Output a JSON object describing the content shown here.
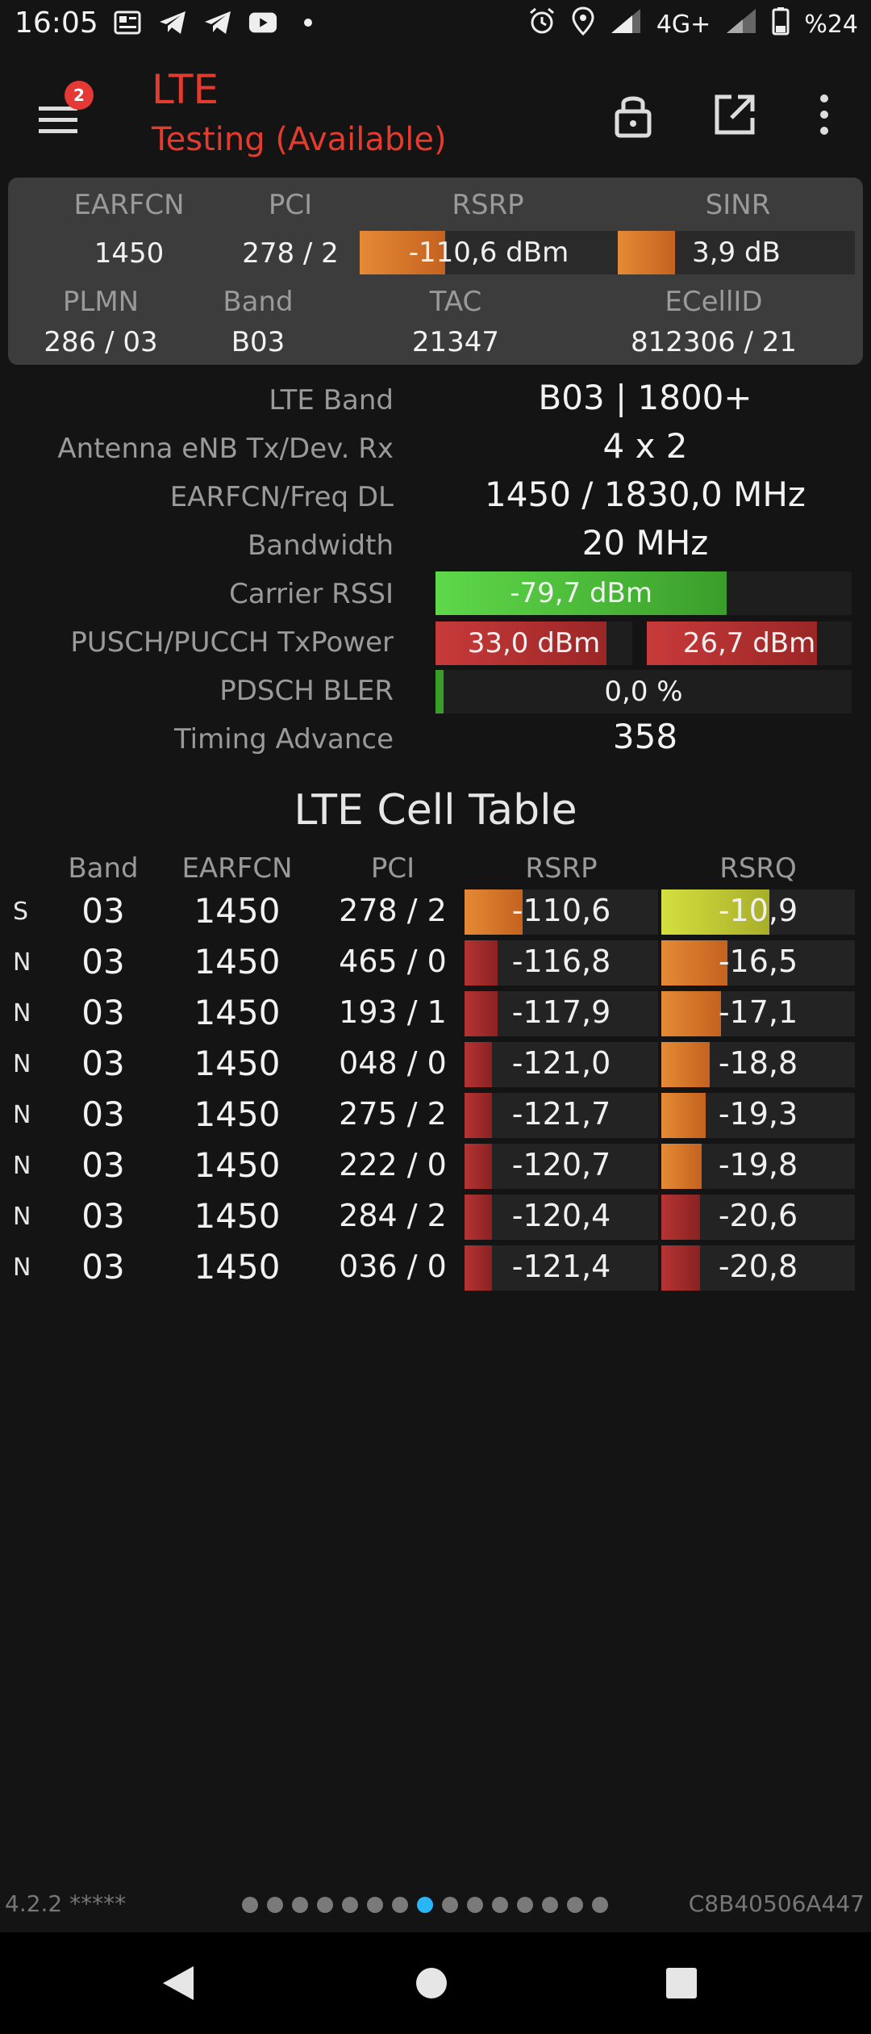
{
  "status_bar": {
    "time": "16:05",
    "network": "4G+",
    "battery": "%24",
    "left_icons": [
      "news-icon",
      "telegram-icon",
      "telegram-icon",
      "youtube-icon",
      "dot-icon"
    ],
    "right_icons": [
      "alarm-icon",
      "location-icon",
      "signal-icon",
      "signal-icon",
      "battery-icon"
    ]
  },
  "app_bar": {
    "title": "LTE",
    "subtitle": "Testing (Available)",
    "menu_badge": "2",
    "title_color": "#e33b2e"
  },
  "summary": {
    "labels": {
      "earfcn": "EARFCN",
      "pci": "PCI",
      "rsrp": "RSRP",
      "sinr": "SINR",
      "plmn": "PLMN",
      "band": "Band",
      "tac": "TAC",
      "ecellid": "ECellID"
    },
    "earfcn": "1450",
    "pci": "278 / 2",
    "rsrp": "-110,6 dBm",
    "rsrp_level": 0.33,
    "sinr": "3,9 dB",
    "sinr_level": 0.24,
    "plmn": "286 / 03",
    "band": "B03",
    "tac": "21347",
    "ecellid": "812306 / 21"
  },
  "details": {
    "lte_band": {
      "label": "LTE Band",
      "value": "B03 | 1800+"
    },
    "antenna": {
      "label": "Antenna eNB Tx/Dev. Rx",
      "value": "4 x 2"
    },
    "earfcn_freq": {
      "label": "EARFCN/Freq DL",
      "value": "1450 / 1830,0 MHz"
    },
    "bandwidth": {
      "label": "Bandwidth",
      "value": "20 MHz"
    },
    "carrier_rssi": {
      "label": "Carrier RSSI",
      "value": "-79,7 dBm",
      "level": 0.7
    },
    "txpower": {
      "label": "PUSCH/PUCCH TxPower",
      "pusch": "33,0 dBm",
      "pucch": "26,7 dBm",
      "pusch_level": 0.87,
      "pucch_level": 0.83
    },
    "bler": {
      "label": "PDSCH BLER",
      "value": "0,0 %",
      "level": 0.02
    },
    "timing_advance": {
      "label": "Timing Advance",
      "value": "358"
    }
  },
  "cell_table": {
    "title": "LTE Cell Table",
    "headers": {
      "band": "Band",
      "earfcn": "EARFCN",
      "pci": "PCI",
      "rsrp": "RSRP",
      "rsrq": "RSRQ"
    },
    "rows": [
      {
        "type": "S",
        "band": "03",
        "earfcn": "1450",
        "pci": "278 / 2",
        "rsrp": "-110,6",
        "rsrq": "-10,9",
        "rsrp_level": 0.3,
        "rsrq_level": 0.56
      },
      {
        "type": "N",
        "band": "03",
        "earfcn": "1450",
        "pci": "465 / 0",
        "rsrp": "-116,8",
        "rsrq": "-16,5",
        "rsrp_level": 0.17,
        "rsrq_level": 0.34
      },
      {
        "type": "N",
        "band": "03",
        "earfcn": "1450",
        "pci": "193 / 1",
        "rsrp": "-117,9",
        "rsrq": "-17,1",
        "rsrp_level": 0.17,
        "rsrq_level": 0.31
      },
      {
        "type": "N",
        "band": "03",
        "earfcn": "1450",
        "pci": "048 / 0",
        "rsrp": "-121,0",
        "rsrq": "-18,8",
        "rsrp_level": 0.14,
        "rsrq_level": 0.25
      },
      {
        "type": "N",
        "band": "03",
        "earfcn": "1450",
        "pci": "275 / 2",
        "rsrp": "-121,7",
        "rsrq": "-19,3",
        "rsrp_level": 0.14,
        "rsrq_level": 0.23
      },
      {
        "type": "N",
        "band": "03",
        "earfcn": "1450",
        "pci": "222 / 0",
        "rsrp": "-120,7",
        "rsrq": "-19,8",
        "rsrp_level": 0.14,
        "rsrq_level": 0.21
      },
      {
        "type": "N",
        "band": "03",
        "earfcn": "1450",
        "pci": "284 / 2",
        "rsrp": "-120,4",
        "rsrq": "-20,6",
        "rsrp_level": 0.14,
        "rsrq_level": 0.2
      },
      {
        "type": "N",
        "band": "03",
        "earfcn": "1450",
        "pci": "036 / 0",
        "rsrp": "-121,4",
        "rsrq": "-20,8",
        "rsrp_level": 0.14,
        "rsrq_level": 0.2
      }
    ]
  },
  "footer": {
    "version": "4.2.2 *****",
    "device_id": "C8B40506A447",
    "page_count": 15,
    "active_page": 8
  },
  "colors": {
    "orange": "#e07a2a",
    "red": "#b03030",
    "green": "#4ec23a",
    "yellow": "#c8d43a"
  }
}
